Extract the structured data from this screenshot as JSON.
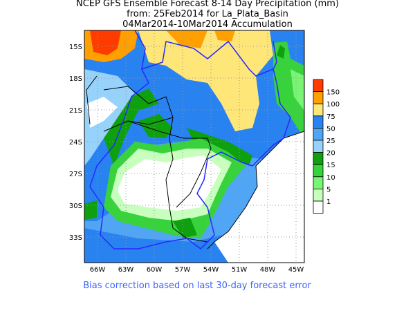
{
  "title": {
    "line1": "NCEP GFS Ensemble Forecast 8-14 Day Precipitation (mm)",
    "line2": "from: 25Feb2014   for La_Plata_Basin",
    "line3": "04Mar2014-10Mar2014 Accumulation"
  },
  "footer": "Bias correction based on last 30-day forecast error",
  "axes": {
    "lat_labels": [
      "15S",
      "18S",
      "21S",
      "24S",
      "27S",
      "30S",
      "33S"
    ],
    "lon_labels": [
      "66W",
      "63W",
      "60W",
      "57W",
      "54W",
      "51W",
      "48W",
      "45W"
    ]
  },
  "legend": {
    "items": [
      {
        "label": "150",
        "color": "#ff3c00"
      },
      {
        "label": "100",
        "color": "#ffa000"
      },
      {
        "label": "75",
        "color": "#ffe678"
      },
      {
        "label": "50",
        "color": "#2882f0"
      },
      {
        "label": "25",
        "color": "#50a5f5"
      },
      {
        "label": "20",
        "color": "#96d2fa"
      },
      {
        "label": "15",
        "color": "#0fa00f"
      },
      {
        "label": "10",
        "color": "#37d23c"
      },
      {
        "label": "5",
        "color": "#78f573"
      },
      {
        "label": "1",
        "color": "#c8ffbe"
      },
      {
        "label": "",
        "color": "#ffffff"
      }
    ]
  },
  "colors": {
    "basin_outline": "#2828ff",
    "borders": "#000000",
    "footer_text": "#3c64ff"
  }
}
